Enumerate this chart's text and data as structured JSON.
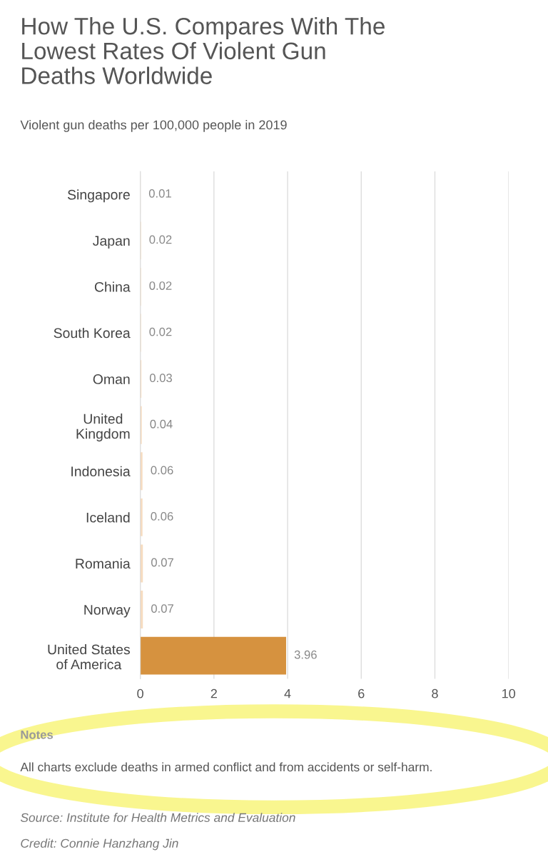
{
  "chart_data": {
    "type": "bar",
    "orientation": "horizontal",
    "title": "How The U.S. Compares With The\nLowest Rates Of Violent Gun\nDeaths Worldwide",
    "subtitle": "Violent gun deaths per 100,000 people in 2019",
    "categories": [
      "Singapore",
      "Japan",
      "China",
      "South Korea",
      "Oman",
      "United\nKingdom",
      "Indonesia",
      "Iceland",
      "Romania",
      "Norway",
      "United States\nof America"
    ],
    "values": [
      0.01,
      0.02,
      0.02,
      0.02,
      0.03,
      0.04,
      0.06,
      0.06,
      0.07,
      0.07,
      3.96
    ],
    "colors": [
      "#f6dcc0",
      "#f6dcc0",
      "#f6dcc0",
      "#f6dcc0",
      "#f6dcc0",
      "#f6dcc0",
      "#f6dcc0",
      "#f6dcc0",
      "#f6dcc0",
      "#f6dcc0",
      "#d6923f"
    ],
    "xlim": [
      0,
      10
    ],
    "xticks": [
      0,
      2,
      4,
      6,
      8,
      10
    ],
    "grid": "x",
    "data_labels": true,
    "annotations": [
      "Notes",
      "All charts exclude deaths in armed conflict and from accidents or self-harm.",
      "Source: Institute for Health Metrics and Evaluation",
      "Credit: Connie Hanzhang Jin"
    ]
  }
}
